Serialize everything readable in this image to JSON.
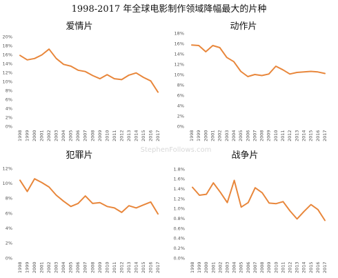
{
  "title": "1998-2017 年全球电影制作领域降幅最大的片种",
  "watermark": "StephenFollows.com",
  "line_color": "#E8863A",
  "chart_data": [
    {
      "type": "line",
      "title": "爱情片",
      "x": [
        "1998",
        "1999",
        "2000",
        "2001",
        "2002",
        "2003",
        "2004",
        "2005",
        "2006",
        "2007",
        "2008",
        "2009",
        "2010",
        "2011",
        "2012",
        "2013",
        "2014",
        "2015",
        "2016",
        "2017"
      ],
      "values": [
        15.8,
        14.8,
        15.1,
        15.9,
        17.2,
        15.1,
        13.8,
        13.4,
        12.5,
        12.2,
        11.3,
        10.6,
        11.5,
        10.6,
        10.4,
        11.4,
        11.9,
        10.9,
        10.1,
        7.6
      ],
      "ylim": [
        0,
        20
      ],
      "yticks": [
        "0%",
        "2%",
        "4%",
        "6%",
        "8%",
        "10%",
        "12%",
        "14%",
        "16%",
        "18%",
        "20%"
      ]
    },
    {
      "type": "line",
      "title": "动作片",
      "x": [
        "1998",
        "1999",
        "2000",
        "2001",
        "2002",
        "2003",
        "2004",
        "2005",
        "2006",
        "2007",
        "2008",
        "2009",
        "2010",
        "2011",
        "2012",
        "2013",
        "2014",
        "2015",
        "2016",
        "2017"
      ],
      "values": [
        15.7,
        15.6,
        14.4,
        15.6,
        15.2,
        13.3,
        12.5,
        10.6,
        9.6,
        10.0,
        9.8,
        10.1,
        11.6,
        10.9,
        10.1,
        10.4,
        10.5,
        10.6,
        10.5,
        10.2
      ],
      "ylim": [
        0,
        18
      ],
      "yticks": [
        "0%",
        "2%",
        "4%",
        "6%",
        "8%",
        "10%",
        "12%",
        "14%",
        "16%",
        "18%"
      ]
    },
    {
      "type": "line",
      "title": "犯罪片",
      "x": [
        "1998",
        "1999",
        "2000",
        "2001",
        "2002",
        "2003",
        "2004",
        "2005",
        "2006",
        "2007",
        "2008",
        "2009",
        "2010",
        "2011",
        "2012",
        "2013",
        "2014",
        "2015",
        "2016",
        "2017"
      ],
      "values": [
        10.4,
        8.9,
        10.6,
        10.1,
        9.5,
        8.4,
        7.6,
        6.9,
        7.3,
        8.3,
        7.3,
        7.4,
        6.9,
        6.7,
        6.1,
        7.0,
        6.7,
        7.1,
        7.5,
        5.9
      ],
      "ylim": [
        0,
        12
      ],
      "yticks": [
        "0%",
        "2%",
        "4%",
        "6%",
        "8%",
        "10%",
        "12%"
      ]
    },
    {
      "type": "line",
      "title": "战争片",
      "x": [
        "1998",
        "1999",
        "2000",
        "2001",
        "2002",
        "2003",
        "2004",
        "2005",
        "2006",
        "2007",
        "2008",
        "2009",
        "2010",
        "2011",
        "2012",
        "2013",
        "2014",
        "2015",
        "2016",
        "2017"
      ],
      "values": [
        1.43,
        1.27,
        1.29,
        1.52,
        1.33,
        1.12,
        1.57,
        1.03,
        1.12,
        1.42,
        1.32,
        1.11,
        1.1,
        1.14,
        0.95,
        0.79,
        0.94,
        1.08,
        0.98,
        0.76
      ],
      "ylim": [
        0,
        1.8
      ],
      "yticks": [
        "0.0%",
        "0.2%",
        "0.4%",
        "0.6%",
        "0.8%",
        "1.0%",
        "1.2%",
        "1.4%",
        "1.6%",
        "1.8%"
      ]
    }
  ]
}
